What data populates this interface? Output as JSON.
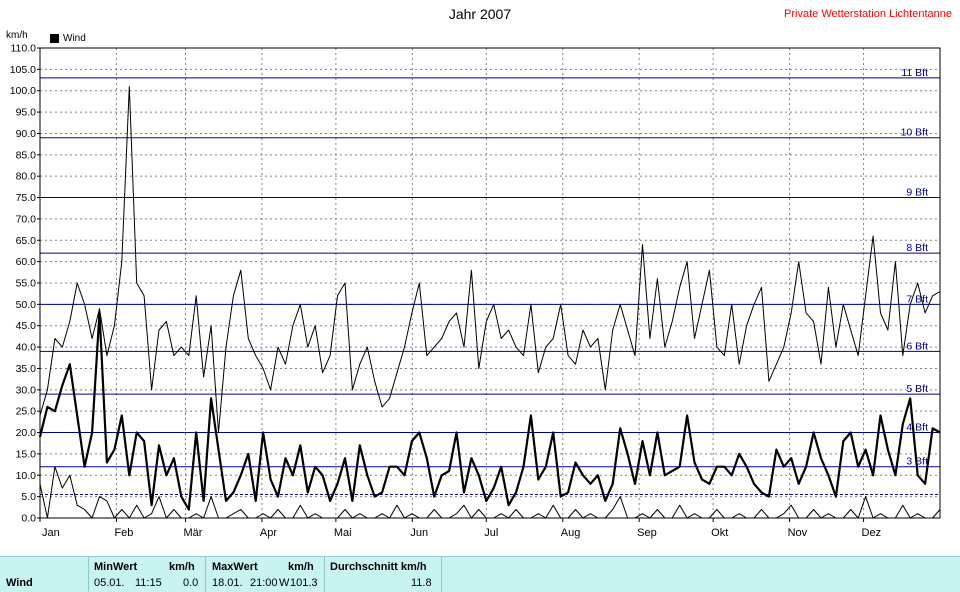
{
  "header": {
    "title": "Jahr 2007",
    "station": "Private Wetterstation Lichtentanne",
    "unit": "km/h",
    "legend": "Wind"
  },
  "colors": {
    "series": "#000000",
    "beaufort_lines": "#00008b",
    "grid": "#808080",
    "station": "#ff0000",
    "footer_bg": "#c9f3f1"
  },
  "chart_data": {
    "type": "line",
    "title": "Jahr 2007",
    "ylabel": "km/h",
    "ylim": [
      0,
      110
    ],
    "yticks": [
      "0.0",
      "5.0",
      "10.0",
      "15.0",
      "20.0",
      "25.0",
      "30.0",
      "35.0",
      "40.0",
      "45.0",
      "50.0",
      "55.0",
      "60.0",
      "65.0",
      "70.0",
      "75.0",
      "80.0",
      "85.0",
      "90.0",
      "95.0",
      "100.0",
      "105.0",
      "110.0"
    ],
    "months": [
      "Jan",
      "Feb",
      "Mär",
      "Apr",
      "Mai",
      "Jun",
      "Jul",
      "Aug",
      "Sep",
      "Okt",
      "Nov",
      "Dez"
    ],
    "beaufort": [
      {
        "label": "3 Bft",
        "value": 12.0
      },
      {
        "label": "4 Bft",
        "value": 20.0
      },
      {
        "label": "5 Bft",
        "value": 29.0
      },
      {
        "label": "6 Bft",
        "value": 39.0
      },
      {
        "label": "7 Bft",
        "value": 50.0
      },
      {
        "label": "8 Bft",
        "value": 62.0
      },
      {
        "label": "9 Bft",
        "value": 75.0
      },
      {
        "label": "10 Bft",
        "value": 89.0
      },
      {
        "label": "11 Bft",
        "value": 103.0
      }
    ],
    "dashed_line": 5.5,
    "series": [
      {
        "name": "Wind",
        "role": "max",
        "values": [
          24,
          30,
          42,
          40,
          46,
          55,
          50,
          42,
          49,
          38,
          45,
          60,
          101,
          55,
          52,
          30,
          44,
          46,
          38,
          40,
          38,
          52,
          33,
          45,
          20,
          40,
          52,
          58,
          42,
          38,
          35,
          30,
          40,
          36,
          45,
          50,
          40,
          45,
          34,
          38,
          52,
          55,
          30,
          36,
          40,
          32,
          26,
          28,
          34,
          40,
          48,
          55,
          38,
          40,
          42,
          46,
          48,
          40,
          58,
          35,
          46,
          50,
          42,
          44,
          40,
          38,
          50,
          34,
          40,
          42,
          50,
          38,
          36,
          44,
          40,
          42,
          30,
          44,
          50,
          44,
          38,
          64,
          42,
          56,
          40,
          46,
          54,
          60,
          42,
          50,
          58,
          40,
          38,
          50,
          36,
          45,
          50,
          54,
          32,
          36,
          40,
          48,
          60,
          48,
          46,
          36,
          54,
          40,
          50,
          44,
          38,
          52,
          66,
          48,
          44,
          60,
          38,
          50,
          55,
          48,
          52,
          53
        ]
      },
      {
        "name": "Wind",
        "role": "avg",
        "values": [
          19,
          26,
          25,
          31,
          36,
          24,
          12,
          20,
          48,
          13,
          16,
          24,
          10,
          20,
          18,
          3,
          17,
          10,
          14,
          5,
          2,
          20,
          4,
          28,
          16,
          4,
          6,
          10,
          15,
          4,
          20,
          9,
          5,
          14,
          10,
          17,
          6,
          12,
          10,
          4,
          8,
          14,
          4,
          17,
          10,
          5,
          6,
          12,
          12,
          10,
          18,
          20,
          14,
          5,
          10,
          11,
          20,
          6,
          14,
          10,
          4,
          7,
          12,
          3,
          6,
          12,
          24,
          9,
          12,
          20,
          5,
          6,
          13,
          10,
          8,
          10,
          4,
          8,
          21,
          15,
          8,
          18,
          10,
          20,
          10,
          11,
          12,
          24,
          13,
          9,
          8,
          12,
          12,
          10,
          15,
          12,
          8,
          6,
          5,
          16,
          12,
          14,
          8,
          12,
          20,
          14,
          10,
          5,
          18,
          20,
          12,
          16,
          10,
          24,
          16,
          10,
          22,
          28,
          10,
          8,
          21,
          20
        ]
      },
      {
        "name": "Wind",
        "role": "min",
        "values": [
          8,
          0,
          12,
          7,
          10,
          3,
          2,
          0,
          5,
          4,
          0,
          2,
          0,
          3,
          0,
          1,
          5,
          0,
          2,
          0,
          0,
          1,
          0,
          5,
          0,
          0,
          1,
          2,
          0,
          0,
          1,
          0,
          2,
          0,
          0,
          3,
          0,
          1,
          0,
          0,
          0,
          2,
          0,
          1,
          0,
          0,
          1,
          0,
          3,
          0,
          1,
          0,
          0,
          2,
          0,
          0,
          1,
          3,
          0,
          2,
          0,
          0,
          1,
          0,
          2,
          0,
          0,
          1,
          0,
          3,
          0,
          0,
          2,
          0,
          1,
          0,
          0,
          2,
          5,
          0,
          0,
          1,
          0,
          2,
          0,
          0,
          3,
          0,
          1,
          0,
          0,
          2,
          0,
          0,
          1,
          0,
          0,
          2,
          0,
          0,
          1,
          3,
          0,
          0,
          2,
          0,
          1,
          0,
          0,
          2,
          0,
          5,
          0,
          1,
          0,
          0,
          3,
          0,
          1,
          0,
          0,
          2
        ]
      }
    ]
  },
  "footer": {
    "row_label": "Wind",
    "min_header": "MinWert",
    "min_unit": "km/h",
    "min_date": "05.01.",
    "min_time": "11:15",
    "min_value": "0.0",
    "max_header": "MaxWert",
    "max_unit": "km/h",
    "max_date": "18.01.",
    "max_time": "21:00",
    "max_dir": "W",
    "max_value": "101.3",
    "avg_header": "Durchschnitt km/h",
    "avg_value": "11.8"
  }
}
